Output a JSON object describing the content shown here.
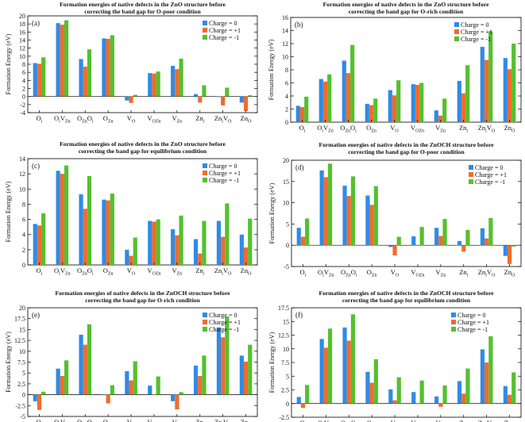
{
  "figure": {
    "colors": {
      "charge0": "#2F8BE6",
      "chargePlus1": "#F26B2C",
      "chargeMinus1": "#55C02E"
    }
  },
  "chart_data": [
    {
      "type": "bar",
      "panel_label": "(a)",
      "title_line1": "Formation energies of native defects in the ZnO structure before",
      "title_line2": "correcting the band gap for O-poor condition",
      "ylabel": "Formation Energy (eV)",
      "legend_placement": "top-right",
      "ylim": [
        -4,
        20
      ],
      "yticks": [
        -4,
        -2,
        0,
        2,
        4,
        6,
        8,
        10,
        12,
        14,
        16,
        18,
        20
      ],
      "categories": [
        {
          "main": "O",
          "sub": "i"
        },
        {
          "main": "O",
          "sub": "i",
          "main2": "V",
          "sub2": "Zn"
        },
        {
          "main": "O",
          "sub": "Zn",
          "main2": "O",
          "sub2": "i"
        },
        {
          "main": "O",
          "sub": "Zn"
        },
        {
          "main": "V",
          "sub": "O"
        },
        {
          "main": "V",
          "sub": "OZn"
        },
        {
          "main": "V",
          "sub": "Zn"
        },
        {
          "main": "Zn",
          "sub": "i"
        },
        {
          "main": "Zn",
          "sub": "i",
          "main2": "V",
          "sub2": "O"
        },
        {
          "main": "Zn",
          "sub": "O"
        }
      ],
      "series": [
        {
          "name": "Charge = 0",
          "color": "#2F8BE6",
          "values": [
            8.3,
            18.2,
            9.3,
            14.4,
            -1.0,
            5.8,
            7.6,
            0.6,
            0.0,
            -1.5
          ]
        },
        {
          "name": "Charge = +1",
          "color": "#F26B2C",
          "values": [
            8.1,
            17.8,
            7.4,
            14.3,
            -1.6,
            5.7,
            6.8,
            -1.5,
            -2.2,
            -3.6
          ]
        },
        {
          "name": "Charge = -1",
          "color": "#55C02E",
          "values": [
            9.7,
            18.9,
            11.7,
            15.2,
            0.4,
            6.2,
            9.4,
            2.8,
            2.2,
            0.3
          ]
        }
      ]
    },
    {
      "type": "bar",
      "panel_label": "(b)",
      "title_line1": "Formation energies of native defects in the ZnO structure before",
      "title_line2": "correcting the band gap for O-rich condition",
      "ylabel": "Formation Energy (eV)",
      "legend_placement": "top-right",
      "ylim": [
        0,
        16
      ],
      "yticks": [
        0,
        2,
        4,
        6,
        8,
        10,
        12,
        14,
        16
      ],
      "categories": [
        {
          "main": "O",
          "sub": "i"
        },
        {
          "main": "O",
          "sub": "i",
          "main2": "V",
          "sub2": "Zn"
        },
        {
          "main": "O",
          "sub": "Zn",
          "main2": "O",
          "sub2": "i"
        },
        {
          "main": "O",
          "sub": "Zn"
        },
        {
          "main": "V",
          "sub": "O"
        },
        {
          "main": "V",
          "sub": "OZn"
        },
        {
          "main": "V",
          "sub": "Zn"
        },
        {
          "main": "Zn",
          "sub": "i"
        },
        {
          "main": "Zn",
          "sub": "i",
          "main2": "V",
          "sub2": "O"
        },
        {
          "main": "Zn",
          "sub": "O"
        }
      ],
      "series": [
        {
          "name": "Charge = 0",
          "color": "#2F8BE6",
          "values": [
            2.5,
            6.6,
            9.4,
            2.8,
            4.9,
            5.8,
            1.8,
            6.3,
            11.5,
            9.8
          ]
        },
        {
          "name": "Charge = +1",
          "color": "#F26B2C",
          "values": [
            2.3,
            6.2,
            7.5,
            2.6,
            4.1,
            5.7,
            1.0,
            4.4,
            9.5,
            8.1
          ]
        },
        {
          "name": "Charge = -1",
          "color": "#55C02E",
          "values": [
            3.9,
            7.3,
            11.8,
            3.6,
            6.4,
            6.0,
            3.6,
            8.7,
            13.9,
            12.0
          ]
        }
      ]
    },
    {
      "type": "bar",
      "panel_label": "(c)",
      "title_line1": "Formation energies of native defects in the ZnO structure before",
      "title_line2": "correcting the band gap for equilibrium condition",
      "ylabel": "Formation Energy (eV)",
      "legend_placement": "top-right",
      "ylim": [
        0,
        14
      ],
      "yticks": [
        0,
        2,
        4,
        6,
        8,
        10,
        12,
        14
      ],
      "categories": [
        {
          "main": "O",
          "sub": "i"
        },
        {
          "main": "O",
          "sub": "i",
          "main2": "V",
          "sub2": "Zn"
        },
        {
          "main": "O",
          "sub": "Zn",
          "main2": "O",
          "sub2": "i"
        },
        {
          "main": "O",
          "sub": "Zn"
        },
        {
          "main": "V",
          "sub": "O"
        },
        {
          "main": "V",
          "sub": "OZn"
        },
        {
          "main": "V",
          "sub": "Zn"
        },
        {
          "main": "Zn",
          "sub": "i"
        },
        {
          "main": "Zn",
          "sub": "i",
          "main2": "V",
          "sub2": "O"
        },
        {
          "main": "Zn",
          "sub": "O"
        }
      ],
      "series": [
        {
          "name": "Charge = 0",
          "color": "#2F8BE6",
          "values": [
            5.4,
            12.4,
            9.3,
            8.6,
            2.0,
            5.8,
            4.7,
            3.4,
            5.8,
            4.0
          ]
        },
        {
          "name": "Charge = +1",
          "color": "#F26B2C",
          "values": [
            5.2,
            12.0,
            7.4,
            8.5,
            1.2,
            5.7,
            3.9,
            1.5,
            3.7,
            2.3
          ]
        },
        {
          "name": "Charge = -1",
          "color": "#55C02E",
          "values": [
            6.8,
            13.1,
            11.7,
            9.4,
            3.6,
            6.0,
            6.5,
            5.8,
            8.1,
            6.1
          ]
        }
      ]
    },
    {
      "type": "bar",
      "panel_label": "(d)",
      "title_line1": "Formation energies of native defects in the ZnOCH structure before",
      "title_line2": "correcting the band gap for O-poor condition",
      "ylabel": "Formation Energy (eV)",
      "legend_placement": "top-right",
      "ylim": [
        -5,
        20
      ],
      "yticks": [
        -5,
        0,
        5,
        10,
        15,
        20
      ],
      "categories": [
        {
          "main": "O",
          "sub": "i"
        },
        {
          "main": "O",
          "sub": "i",
          "main2": "V",
          "sub2": "Zn"
        },
        {
          "main": "O",
          "sub": "Zn",
          "main2": "O",
          "sub2": "i"
        },
        {
          "main": "O",
          "sub": "Zn"
        },
        {
          "main": "V",
          "sub": "O"
        },
        {
          "main": "V",
          "sub": "OZn"
        },
        {
          "main": "V",
          "sub": "Zn"
        },
        {
          "main": "Zn",
          "sub": "i"
        },
        {
          "main": "Zn",
          "sub": "i",
          "main2": "V",
          "sub2": "O"
        },
        {
          "main": "Zn",
          "sub": "O"
        }
      ],
      "series": [
        {
          "name": "Charge = 0",
          "color": "#2F8BE6",
          "values": [
            4.1,
            17.6,
            14.0,
            11.7,
            -0.4,
            2.1,
            4.1,
            1.0,
            4.0,
            -2.5
          ]
        },
        {
          "name": "Charge = +1",
          "color": "#F26B2C",
          "values": [
            2.0,
            16.0,
            11.6,
            9.5,
            -2.4,
            0.0,
            2.2,
            -1.5,
            1.6,
            -4.4
          ]
        },
        {
          "name": "Charge = -1",
          "color": "#55C02E",
          "values": [
            6.3,
            19.2,
            16.2,
            13.9,
            2.0,
            4.3,
            6.2,
            3.6,
            6.4,
            -0.3
          ]
        }
      ]
    },
    {
      "type": "bar",
      "panel_label": "(e)",
      "title_line1": "Formation energies of native defects in the ZnOCH structure before",
      "title_line2": "correcting the band gap for O-rich condition",
      "ylabel": "Formation Energy (eV)",
      "legend_placement": "top-right",
      "ylim": [
        -5,
        20
      ],
      "yticks": [
        -5,
        -2.5,
        0,
        2.5,
        5,
        7.5,
        10,
        12.5,
        15,
        17.5,
        20
      ],
      "categories": [
        {
          "main": "O",
          "sub": "i"
        },
        {
          "main": "O",
          "sub": "i",
          "main2": "V",
          "sub2": "Zn"
        },
        {
          "main": "O",
          "sub": "Zn",
          "main2": "O",
          "sub2": "i"
        },
        {
          "main": "O",
          "sub": "Zn"
        },
        {
          "main": "V",
          "sub": "O"
        },
        {
          "main": "V",
          "sub": "OZn"
        },
        {
          "main": "V",
          "sub": "Zn"
        },
        {
          "main": "Zn",
          "sub": "i"
        },
        {
          "main": "Zn",
          "sub": "i",
          "main2": "V",
          "sub2": "O"
        },
        {
          "main": "Zn",
          "sub": "O"
        }
      ],
      "series": [
        {
          "name": "Charge = 0",
          "color": "#2F8BE6",
          "values": [
            -1.5,
            6.0,
            13.8,
            0.0,
            5.4,
            2.1,
            -1.5,
            6.7,
            15.5,
            9.0
          ]
        },
        {
          "name": "Charge = +1",
          "color": "#F26B2C",
          "values": [
            -3.5,
            4.3,
            11.5,
            -2.0,
            3.3,
            0.0,
            -3.4,
            4.3,
            13.2,
            7.6
          ]
        },
        {
          "name": "Charge = -1",
          "color": "#55C02E",
          "values": [
            0.7,
            7.9,
            16.2,
            2.2,
            7.7,
            4.2,
            0.6,
            9.0,
            18.0,
            11.5
          ]
        }
      ]
    },
    {
      "type": "bar",
      "panel_label": "(f)",
      "title_line1": "Formation energies of native defects in the ZnOCH structure before",
      "title_line2": "correcting the band gap for equilibrium condition",
      "ylabel": "Formation Energy (eV)",
      "legend_placement": "top-right",
      "ylim": [
        -2.5,
        17.5
      ],
      "yticks": [
        -2.5,
        0,
        2.5,
        5,
        7.5,
        10,
        12.5,
        15,
        17.5
      ],
      "categories": [
        {
          "main": "O",
          "sub": "i"
        },
        {
          "main": "O",
          "sub": "i",
          "main2": "V",
          "sub2": "Zn"
        },
        {
          "main": "O",
          "sub": "Zn",
          "main2": "O",
          "sub2": "i"
        },
        {
          "main": "O",
          "sub": "Zn"
        },
        {
          "main": "V",
          "sub": "O"
        },
        {
          "main": "V",
          "sub": "OZn"
        },
        {
          "main": "V",
          "sub": "Zn"
        },
        {
          "main": "Zn",
          "sub": "i"
        },
        {
          "main": "Zn",
          "sub": "i",
          "main2": "V",
          "sub2": "O"
        },
        {
          "main": "Zn",
          "sub": "O"
        }
      ],
      "series": [
        {
          "name": "Charge = 0",
          "color": "#2F8BE6",
          "values": [
            1.2,
            11.8,
            13.9,
            5.8,
            2.6,
            2.1,
            1.3,
            4.1,
            9.9,
            3.2
          ]
        },
        {
          "name": "Charge = +1",
          "color": "#F26B2C",
          "values": [
            -0.8,
            10.2,
            11.5,
            3.8,
            0.6,
            0.0,
            -0.6,
            1.8,
            7.5,
            1.6
          ]
        },
        {
          "name": "Charge = -1",
          "color": "#55C02E",
          "values": [
            3.4,
            13.7,
            16.3,
            8.1,
            4.8,
            4.2,
            3.3,
            6.4,
            12.3,
            5.7
          ]
        }
      ]
    }
  ]
}
